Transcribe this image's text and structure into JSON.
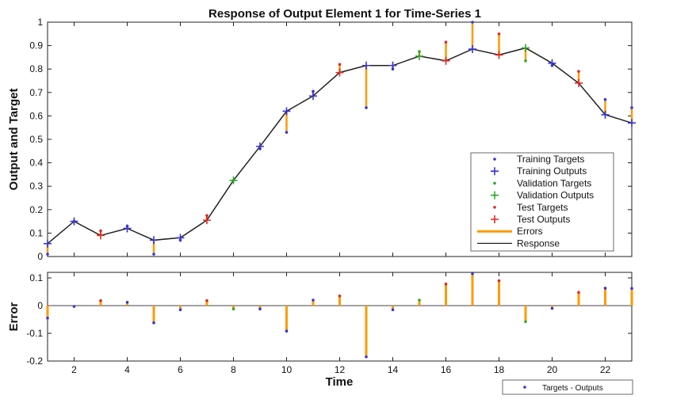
{
  "chart_data": [
    {
      "type": "line",
      "title": "Response of Output Element 1 for Time-Series 1",
      "xlabel": "",
      "ylabel": "Output and Target",
      "xlim": [
        1,
        23
      ],
      "ylim": [
        0,
        1
      ],
      "xticks": [
        2,
        4,
        6,
        8,
        10,
        12,
        14,
        16,
        18,
        20,
        22
      ],
      "yticks": [
        0,
        0.1,
        0.2,
        0.3,
        0.4,
        0.5,
        0.6,
        0.7,
        0.8,
        0.9,
        1
      ],
      "ytick_labels": [
        "0",
        "0.1",
        "0.2",
        "0.3",
        "0.4",
        "0.5",
        "0.6",
        "0.7",
        "0.8",
        "0.9",
        "1"
      ],
      "grid": false,
      "legend_position": "bottom-right",
      "legend": [
        "Training Targets",
        "Training Outputs",
        "Validation Targets",
        "Validation Outputs",
        "Test Targets",
        "Test Outputs",
        "Errors",
        "Response"
      ],
      "colors": {
        "training": "#3535d6",
        "validation": "#2ca82c",
        "test": "#e02828",
        "errors": "#ff9a00",
        "response": "#222222"
      },
      "x": [
        1,
        2,
        3,
        4,
        5,
        6,
        7,
        8,
        9,
        10,
        11,
        12,
        13,
        14,
        15,
        16,
        17,
        18,
        19,
        20,
        21,
        22,
        23
      ],
      "outputs": [
        0.055,
        0.15,
        0.09,
        0.12,
        0.07,
        0.08,
        0.155,
        0.325,
        0.47,
        0.62,
        0.685,
        0.785,
        0.815,
        0.815,
        0.855,
        0.835,
        0.885,
        0.86,
        0.89,
        0.825,
        0.74,
        0.605,
        0.57
      ],
      "targets": [
        0.01,
        0.15,
        0.11,
        0.13,
        0.01,
        0.07,
        0.175,
        0.325,
        0.46,
        0.53,
        0.705,
        0.82,
        0.635,
        0.8,
        0.875,
        0.915,
        1.0,
        0.95,
        0.835,
        0.815,
        0.79,
        0.67,
        0.635
      ],
      "set": [
        "training",
        "training",
        "test",
        "training",
        "training",
        "training",
        "test",
        "validation",
        "training",
        "training",
        "training",
        "test",
        "training",
        "training",
        "validation",
        "test",
        "training",
        "test",
        "validation",
        "training",
        "test",
        "training",
        "training"
      ]
    },
    {
      "type": "bar",
      "title": "",
      "xlabel": "Time",
      "ylabel": "Error",
      "xlim": [
        1,
        23
      ],
      "ylim": [
        -0.2,
        0.12
      ],
      "xticks": [
        2,
        4,
        6,
        8,
        10,
        12,
        14,
        16,
        18,
        20,
        22
      ],
      "yticks": [
        -0.2,
        -0.1,
        0,
        0.1
      ],
      "ytick_labels": [
        "-0.2",
        "-0.1",
        "0",
        "0.1"
      ],
      "grid": false,
      "legend_position": "below-right",
      "legend": [
        "Targets - Outputs"
      ],
      "x": [
        1,
        2,
        3,
        4,
        5,
        6,
        7,
        8,
        9,
        10,
        11,
        12,
        13,
        14,
        15,
        16,
        17,
        18,
        19,
        20,
        21,
        22,
        23
      ],
      "values": [
        -0.045,
        -0.003,
        0.018,
        0.012,
        -0.062,
        -0.015,
        0.018,
        -0.012,
        -0.012,
        -0.092,
        0.02,
        0.035,
        -0.185,
        -0.015,
        0.02,
        0.078,
        0.115,
        0.09,
        -0.058,
        -0.01,
        0.048,
        0.063,
        0.062
      ],
      "set": [
        "training",
        "training",
        "test",
        "training",
        "training",
        "training",
        "test",
        "validation",
        "training",
        "training",
        "training",
        "test",
        "training",
        "training",
        "validation",
        "test",
        "training",
        "test",
        "validation",
        "training",
        "test",
        "training",
        "training"
      ]
    }
  ]
}
